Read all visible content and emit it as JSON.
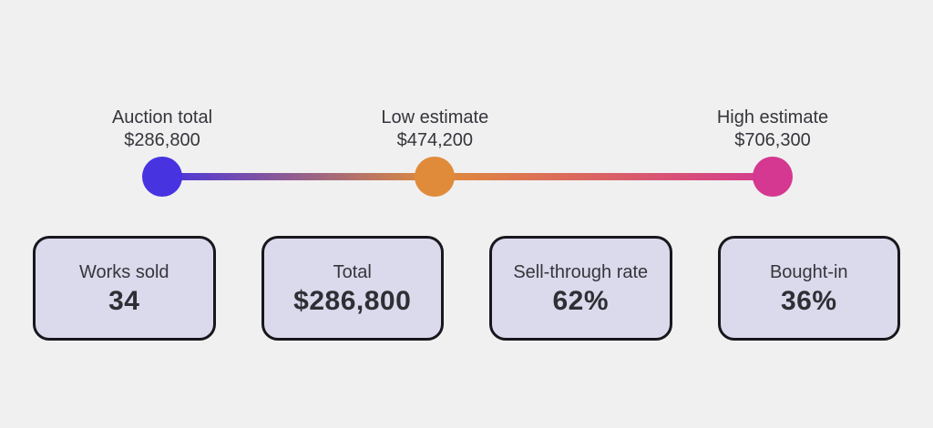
{
  "colors": {
    "background": "#f0f0f1",
    "text": "#35353b",
    "card_background": "#dbdaec",
    "card_border": "#17171d",
    "marker_purple": "#4733df",
    "marker_orange": "#e08b3a",
    "marker_pink": "#d43890"
  },
  "chart_data": {
    "type": "line",
    "subtype": "value-range-markers",
    "title": "",
    "xlabel": "",
    "ylabel": "",
    "grid": false,
    "legend_position": "none",
    "axis_range": [
      286800,
      706300
    ],
    "markers": [
      {
        "label": "Auction total",
        "value": 286800,
        "display_value": "$286,800",
        "color": "#4733df"
      },
      {
        "label": "Low estimate",
        "value": 474200,
        "display_value": "$474,200",
        "color": "#e08b3a"
      },
      {
        "label": "High estimate",
        "value": 706300,
        "display_value": "$706,300",
        "color": "#d43890"
      }
    ]
  },
  "stats": [
    {
      "label": "Works sold",
      "value": "34"
    },
    {
      "label": "Total",
      "value": "$286,800"
    },
    {
      "label": "Sell-through rate",
      "value": "62%"
    },
    {
      "label": "Bought-in",
      "value": "36%"
    }
  ]
}
